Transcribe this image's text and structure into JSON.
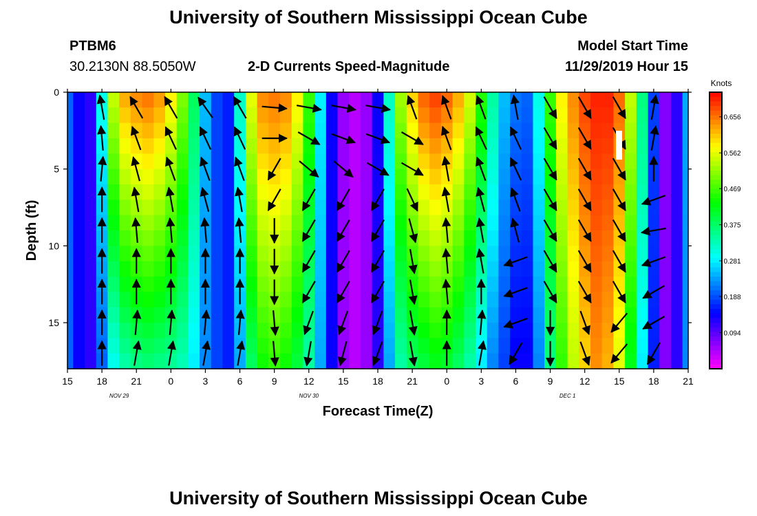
{
  "page": {
    "title_top": "University of Southern Mississippi Ocean Cube",
    "title_bottom": "University of Southern Mississippi Ocean Cube",
    "station": "PTBM6",
    "coords": "30.2130N 88.5050W",
    "plot_title": "2-D Currents Speed-Magnitude",
    "model_start_label": "Model Start Time",
    "model_start_value": "11/29/2019 Hour 15"
  },
  "chart_data": {
    "type": "heatmap",
    "title": "2-D Currents Speed-Magnitude",
    "xlabel": "Forecast Time(Z)",
    "ylabel": "Depth (ft)",
    "x_ticks": [
      "15",
      "18",
      "21",
      "0",
      "3",
      "6",
      "9",
      "12",
      "15",
      "18",
      "21",
      "0",
      "3",
      "6",
      "9",
      "12",
      "15",
      "18",
      "21"
    ],
    "x_tick_hours": [
      0,
      3,
      6,
      9,
      12,
      15,
      18,
      21,
      24,
      27,
      30,
      33,
      36,
      39,
      42,
      45,
      48,
      51,
      54
    ],
    "day_labels": [
      {
        "text": "NOV 29",
        "hour": 4.5
      },
      {
        "text": "NOV 30",
        "hour": 21
      },
      {
        "text": "DEC 1",
        "hour": 43.5
      }
    ],
    "xlim_hours": [
      0,
      54
    ],
    "y_ticks": [
      0,
      5,
      10,
      15
    ],
    "ylim": [
      0,
      18
    ],
    "y_inverted": true,
    "colorbar": {
      "title": "Knots",
      "ticks": [
        "0.656",
        "0.562",
        "0.469",
        "0.375",
        "0.281",
        "0.188",
        "0.094"
      ],
      "tick_values": [
        0.656,
        0.562,
        0.469,
        0.375,
        0.281,
        0.188,
        0.094
      ],
      "range": [
        0,
        0.72
      ]
    },
    "speed_profile": {
      "hours": [
        0,
        1,
        2,
        3,
        4,
        5,
        6,
        7,
        8,
        9,
        10,
        11,
        12,
        13,
        14,
        15,
        16,
        17,
        18,
        19,
        20,
        21,
        22,
        23,
        24,
        25,
        26,
        27,
        28,
        29,
        30,
        31,
        32,
        33,
        34,
        35,
        36,
        37,
        38,
        39,
        40,
        41,
        42,
        43,
        44,
        45,
        46,
        47,
        48,
        49,
        50,
        51,
        52,
        53,
        54
      ],
      "surface": [
        0.2,
        0.14,
        0.12,
        0.3,
        0.54,
        0.62,
        0.64,
        0.65,
        0.63,
        0.58,
        0.5,
        0.38,
        0.25,
        0.18,
        0.16,
        0.32,
        0.56,
        0.64,
        0.65,
        0.64,
        0.58,
        0.46,
        0.28,
        0.14,
        0.06,
        0.04,
        0.06,
        0.14,
        0.32,
        0.52,
        0.6,
        0.66,
        0.68,
        0.66,
        0.62,
        0.55,
        0.45,
        0.34,
        0.25,
        0.21,
        0.2,
        0.3,
        0.46,
        0.58,
        0.64,
        0.68,
        0.7,
        0.7,
        0.66,
        0.54,
        0.36,
        0.18,
        0.07,
        0.12,
        0.24
      ],
      "bottom": [
        0.2,
        0.14,
        0.12,
        0.2,
        0.3,
        0.34,
        0.36,
        0.37,
        0.36,
        0.35,
        0.33,
        0.28,
        0.22,
        0.18,
        0.16,
        0.24,
        0.38,
        0.44,
        0.46,
        0.44,
        0.4,
        0.34,
        0.24,
        0.14,
        0.06,
        0.04,
        0.06,
        0.12,
        0.24,
        0.34,
        0.38,
        0.4,
        0.42,
        0.41,
        0.38,
        0.34,
        0.28,
        0.22,
        0.18,
        0.14,
        0.14,
        0.22,
        0.36,
        0.46,
        0.54,
        0.6,
        0.64,
        0.62,
        0.56,
        0.42,
        0.28,
        0.16,
        0.07,
        0.12,
        0.22
      ]
    },
    "vector_depths": [
      1,
      3,
      5,
      7,
      9,
      11,
      13,
      15,
      17
    ],
    "vector_hours": [
      3,
      6,
      9,
      12,
      15,
      18,
      21,
      24,
      27,
      30,
      33,
      36,
      39,
      42,
      45,
      48,
      51
    ],
    "vector_angles_deg": [
      [
        100,
        120,
        120,
        125,
        120,
        355,
        350,
        350,
        350,
        110,
        110,
        110,
        100,
        300,
        300,
        300,
        80
      ],
      [
        95,
        110,
        115,
        115,
        115,
        0,
        330,
        340,
        340,
        330,
        110,
        115,
        115,
        300,
        300,
        300,
        80
      ],
      [
        85,
        105,
        110,
        110,
        110,
        240,
        320,
        320,
        330,
        330,
        100,
        110,
        115,
        300,
        300,
        300,
        90
      ],
      [
        90,
        100,
        100,
        105,
        100,
        240,
        240,
        240,
        240,
        295,
        100,
        105,
        110,
        300,
        300,
        300,
        200
      ],
      [
        90,
        95,
        95,
        95,
        95,
        270,
        240,
        240,
        240,
        285,
        95,
        100,
        105,
        300,
        300,
        300,
        190
      ],
      [
        90,
        90,
        90,
        90,
        90,
        270,
        240,
        240,
        240,
        280,
        95,
        100,
        200,
        300,
        300,
        300,
        200
      ],
      [
        90,
        90,
        90,
        90,
        90,
        270,
        240,
        240,
        240,
        280,
        95,
        90,
        200,
        300,
        300,
        300,
        210
      ],
      [
        90,
        85,
        85,
        85,
        85,
        275,
        250,
        250,
        250,
        280,
        90,
        85,
        200,
        270,
        290,
        230,
        210
      ],
      [
        90,
        80,
        80,
        80,
        80,
        275,
        260,
        255,
        250,
        280,
        90,
        80,
        240,
        270,
        290,
        230,
        240
      ]
    ]
  }
}
